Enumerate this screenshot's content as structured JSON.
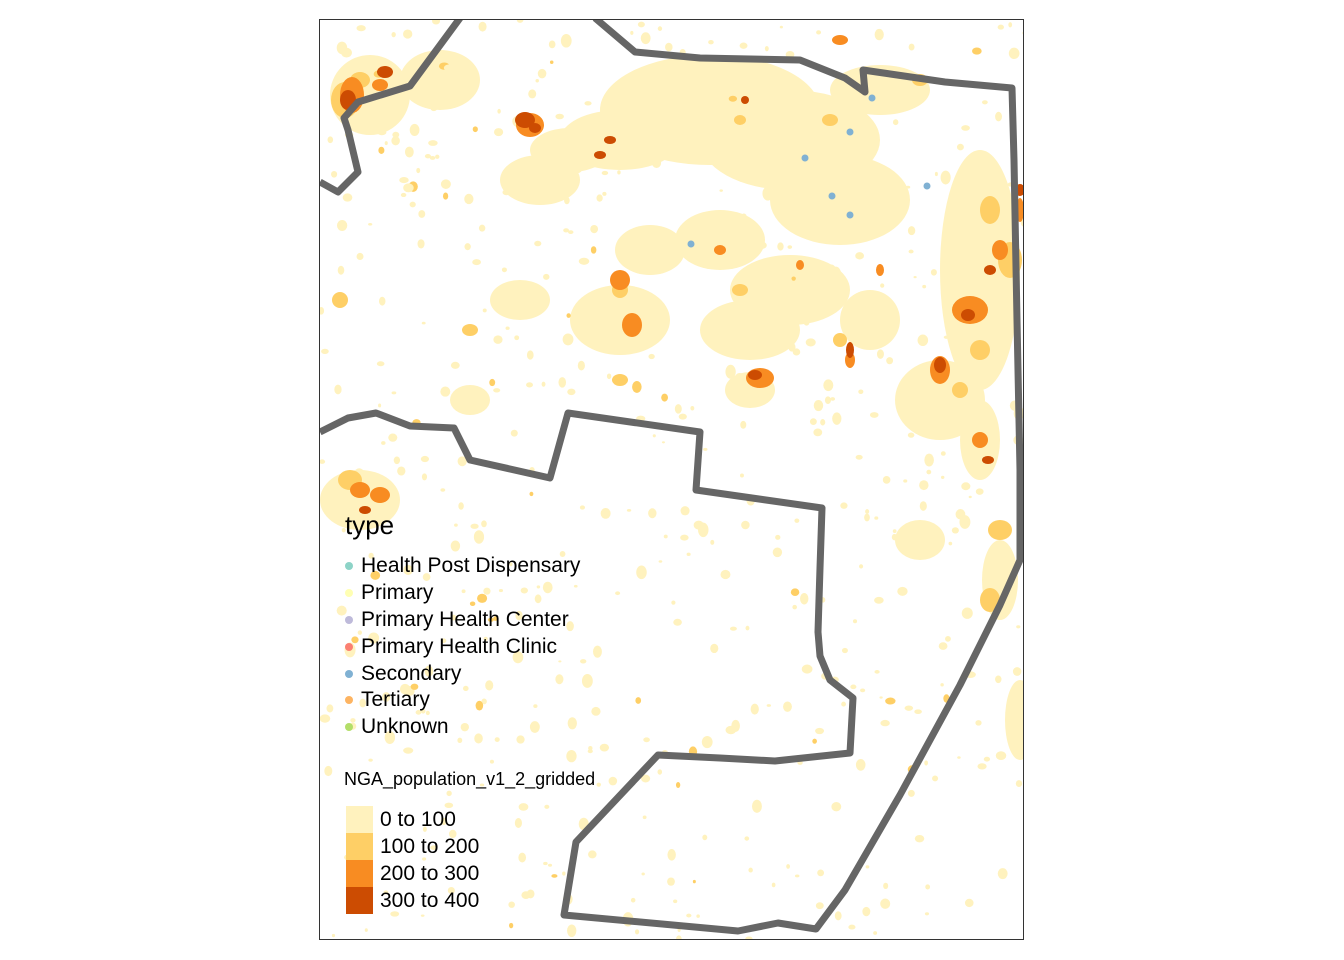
{
  "map": {
    "boundary_color": "#666666",
    "facility_types": [
      {
        "label": "Health Post Dispensary",
        "color": "#8DD3C7"
      },
      {
        "label": "Primary",
        "color": "#FFFFB3"
      },
      {
        "label": "Primary Health Center",
        "color": "#BEBADA"
      },
      {
        "label": "Primary Health Clinic",
        "color": "#FB8072"
      },
      {
        "label": "Secondary",
        "color": "#80B1D3"
      },
      {
        "label": "Tertiary",
        "color": "#FDB462"
      },
      {
        "label": "Unknown",
        "color": "#B3DE69"
      }
    ],
    "population_classes": [
      {
        "label": "0 to 100",
        "color": "#FFF2BE"
      },
      {
        "label": "100 to 200",
        "color": "#FECF66"
      },
      {
        "label": "200 to 300",
        "color": "#F88C22"
      },
      {
        "label": "300 to 400",
        "color": "#CC4C02"
      }
    ]
  },
  "legend": {
    "type_title": "type",
    "population_title": "NGA_population_v1_2_gridded"
  }
}
